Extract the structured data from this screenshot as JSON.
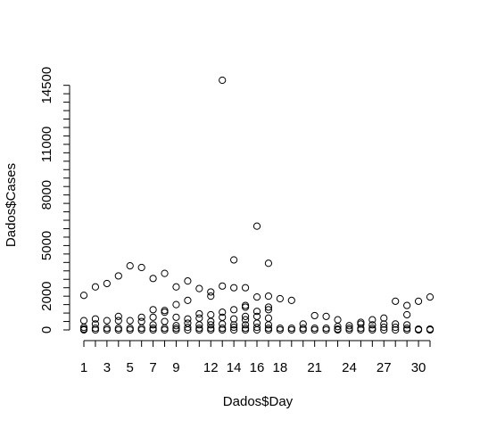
{
  "chart_data": {
    "type": "scatter",
    "title": "",
    "xlabel": "Dados$Day",
    "ylabel": "Dados$Cases",
    "xlim": [
      1,
      31
    ],
    "ylim": [
      0,
      14800
    ],
    "x_ticks": [
      1,
      3,
      5,
      7,
      9,
      12,
      14,
      16,
      18,
      21,
      24,
      27,
      30
    ],
    "x_minor_ticks": [
      2,
      4,
      6,
      8,
      10,
      11,
      13,
      15,
      17,
      19,
      20,
      22,
      23,
      25,
      26,
      28,
      29,
      31
    ],
    "y_ticks": [
      0,
      2000,
      5000,
      8000,
      11000,
      14500
    ],
    "y_minor_ticks": [
      500,
      1000,
      1500,
      2500,
      3000,
      3500,
      4000,
      4500,
      5500,
      6000,
      6500,
      7000,
      7500,
      8500,
      9000,
      9500,
      10000,
      10500,
      11500,
      12000,
      12500,
      13000,
      13500,
      14000
    ],
    "grid": false,
    "legend": "none",
    "marker": "open-circle",
    "color": "#000000",
    "points": [
      [
        1,
        2050
      ],
      [
        1,
        550
      ],
      [
        1,
        150
      ],
      [
        1,
        50
      ],
      [
        1,
        0
      ],
      [
        2,
        2550
      ],
      [
        2,
        650
      ],
      [
        2,
        350
      ],
      [
        2,
        100
      ],
      [
        2,
        0
      ],
      [
        3,
        2750
      ],
      [
        3,
        550
      ],
      [
        3,
        100
      ],
      [
        3,
        0
      ],
      [
        4,
        3200
      ],
      [
        4,
        800
      ],
      [
        4,
        550
      ],
      [
        4,
        100
      ],
      [
        4,
        0
      ],
      [
        5,
        3800
      ],
      [
        5,
        550
      ],
      [
        5,
        100
      ],
      [
        5,
        0
      ],
      [
        6,
        3700
      ],
      [
        6,
        750
      ],
      [
        6,
        500
      ],
      [
        6,
        100
      ],
      [
        6,
        0
      ],
      [
        7,
        3050
      ],
      [
        7,
        1200
      ],
      [
        7,
        750
      ],
      [
        7,
        300
      ],
      [
        7,
        100
      ],
      [
        7,
        0
      ],
      [
        8,
        3350
      ],
      [
        8,
        1150
      ],
      [
        8,
        1050
      ],
      [
        8,
        500
      ],
      [
        8,
        100
      ],
      [
        8,
        0
      ],
      [
        9,
        2550
      ],
      [
        9,
        1500
      ],
      [
        9,
        750
      ],
      [
        9,
        250
      ],
      [
        9,
        100
      ],
      [
        9,
        0
      ],
      [
        10,
        2900
      ],
      [
        10,
        1750
      ],
      [
        10,
        650
      ],
      [
        10,
        400
      ],
      [
        10,
        150
      ],
      [
        10,
        0
      ],
      [
        11,
        2450
      ],
      [
        11,
        950
      ],
      [
        11,
        700
      ],
      [
        11,
        300
      ],
      [
        11,
        100
      ],
      [
        11,
        0
      ],
      [
        12,
        2250
      ],
      [
        12,
        2000
      ],
      [
        12,
        900
      ],
      [
        12,
        500
      ],
      [
        12,
        300
      ],
      [
        12,
        100
      ],
      [
        12,
        0
      ],
      [
        13,
        14800
      ],
      [
        13,
        2600
      ],
      [
        13,
        1050
      ],
      [
        13,
        750
      ],
      [
        13,
        350
      ],
      [
        13,
        100
      ],
      [
        13,
        0
      ],
      [
        14,
        4150
      ],
      [
        14,
        2500
      ],
      [
        14,
        1200
      ],
      [
        14,
        650
      ],
      [
        14,
        300
      ],
      [
        14,
        150
      ],
      [
        14,
        0
      ],
      [
        15,
        2500
      ],
      [
        15,
        1450
      ],
      [
        15,
        1350
      ],
      [
        15,
        800
      ],
      [
        15,
        600
      ],
      [
        15,
        300
      ],
      [
        15,
        100
      ],
      [
        15,
        0
      ],
      [
        16,
        6150
      ],
      [
        16,
        1950
      ],
      [
        16,
        1100
      ],
      [
        16,
        800
      ],
      [
        16,
        400
      ],
      [
        16,
        150
      ],
      [
        16,
        0
      ],
      [
        17,
        3950
      ],
      [
        17,
        2000
      ],
      [
        17,
        1350
      ],
      [
        17,
        1200
      ],
      [
        17,
        700
      ],
      [
        17,
        300
      ],
      [
        17,
        100
      ],
      [
        17,
        0
      ],
      [
        18,
        1850
      ],
      [
        18,
        100
      ],
      [
        18,
        0
      ],
      [
        19,
        1750
      ],
      [
        19,
        100
      ],
      [
        19,
        0
      ],
      [
        20,
        350
      ],
      [
        20,
        100
      ],
      [
        20,
        0
      ],
      [
        21,
        850
      ],
      [
        21,
        100
      ],
      [
        21,
        0
      ],
      [
        22,
        800
      ],
      [
        22,
        100
      ],
      [
        22,
        0
      ],
      [
        23,
        600
      ],
      [
        23,
        200
      ],
      [
        23,
        50
      ],
      [
        23,
        0
      ],
      [
        24,
        250
      ],
      [
        24,
        100
      ],
      [
        24,
        0
      ],
      [
        25,
        450
      ],
      [
        25,
        350
      ],
      [
        25,
        100
      ],
      [
        25,
        0
      ],
      [
        26,
        600
      ],
      [
        26,
        300
      ],
      [
        26,
        100
      ],
      [
        26,
        0
      ],
      [
        27,
        700
      ],
      [
        27,
        350
      ],
      [
        27,
        150
      ],
      [
        27,
        0
      ],
      [
        28,
        1700
      ],
      [
        28,
        350
      ],
      [
        28,
        150
      ],
      [
        28,
        0
      ],
      [
        29,
        1450
      ],
      [
        29,
        900
      ],
      [
        29,
        300
      ],
      [
        29,
        100
      ],
      [
        29,
        0
      ],
      [
        30,
        1700
      ],
      [
        30,
        50
      ],
      [
        30,
        0
      ],
      [
        31,
        1950
      ],
      [
        31,
        50
      ],
      [
        31,
        0
      ]
    ]
  }
}
